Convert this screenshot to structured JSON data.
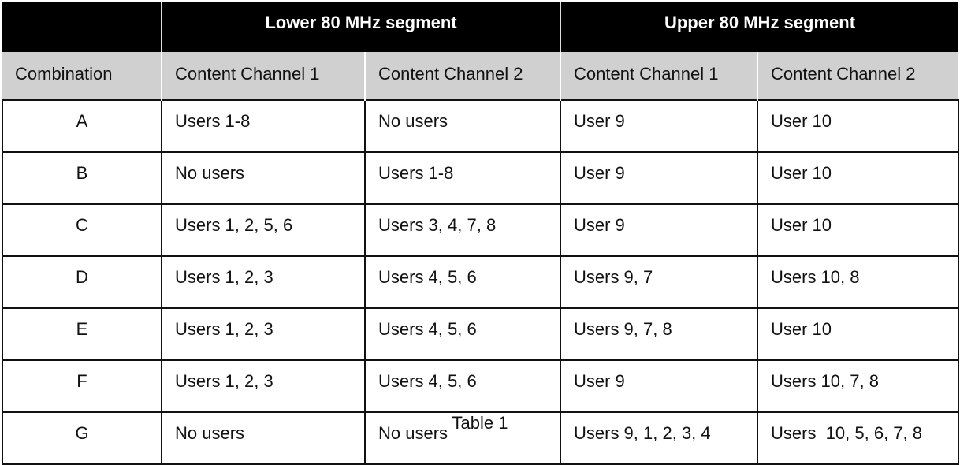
{
  "table": {
    "segment_headers": [
      "",
      "Lower 80 MHz segment",
      "Upper 80 MHz segment"
    ],
    "column_headers": [
      "Combination",
      "Content Channel 1",
      "Content Channel 2",
      "Content Channel 1",
      "Content Channel 2"
    ],
    "rows": [
      [
        "A",
        "Users 1-8",
        "No users",
        "User 9",
        "User 10"
      ],
      [
        "B",
        "No users",
        "Users 1-8",
        "User 9",
        "User 10"
      ],
      [
        "C",
        "Users 1, 2, 5, 6",
        "Users 3, 4, 7, 8",
        "User 9",
        "User 10"
      ],
      [
        "D",
        "Users 1, 2, 3",
        "Users 4, 5, 6",
        "Users 9, 7",
        "Users 10, 8"
      ],
      [
        "E",
        "Users 1, 2, 3",
        "Users 4, 5, 6",
        "Users 9, 7, 8",
        "User 10"
      ],
      [
        "F",
        "Users 1, 2, 3",
        "Users 4, 5, 6",
        "User 9",
        "Users 10, 7, 8"
      ],
      [
        "G",
        "No users",
        "No users",
        "Users 9, 1, 2, 3, 4",
        "Users  10, 5, 6, 7, 8"
      ]
    ]
  },
  "caption": "Table 1",
  "colors": {
    "header_bg": "#000000",
    "subheader_bg": "#d0d0d0"
  }
}
